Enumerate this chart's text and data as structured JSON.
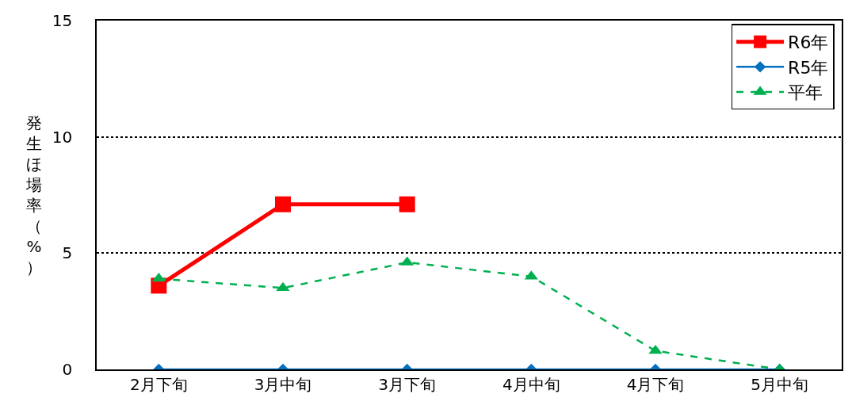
{
  "chart_data": {
    "type": "line",
    "ylabel": "発生ほ場率（%）",
    "categories": [
      "2月下旬",
      "3月中旬",
      "3月下旬",
      "4月中旬",
      "4月下旬",
      "5月中旬"
    ],
    "series": [
      {
        "name": "R6年",
        "color": "#ff0000",
        "values": [
          3.6,
          7.1,
          7.1,
          null,
          null,
          null
        ],
        "marker": "square",
        "line_style": "solid"
      },
      {
        "name": "R5年",
        "color": "#0070c0",
        "values": [
          0,
          0,
          0,
          0,
          0,
          0
        ],
        "marker": "diamond",
        "line_style": "solid"
      },
      {
        "name": "平年",
        "color": "#00b050",
        "values": [
          3.9,
          3.5,
          4.6,
          4.0,
          0.8,
          0
        ],
        "marker": "triangle",
        "line_style": "dashed"
      }
    ],
    "ylim": [
      0,
      15
    ],
    "yticks": [
      0,
      5,
      10,
      15
    ],
    "grid": "y",
    "legend": "top right"
  }
}
